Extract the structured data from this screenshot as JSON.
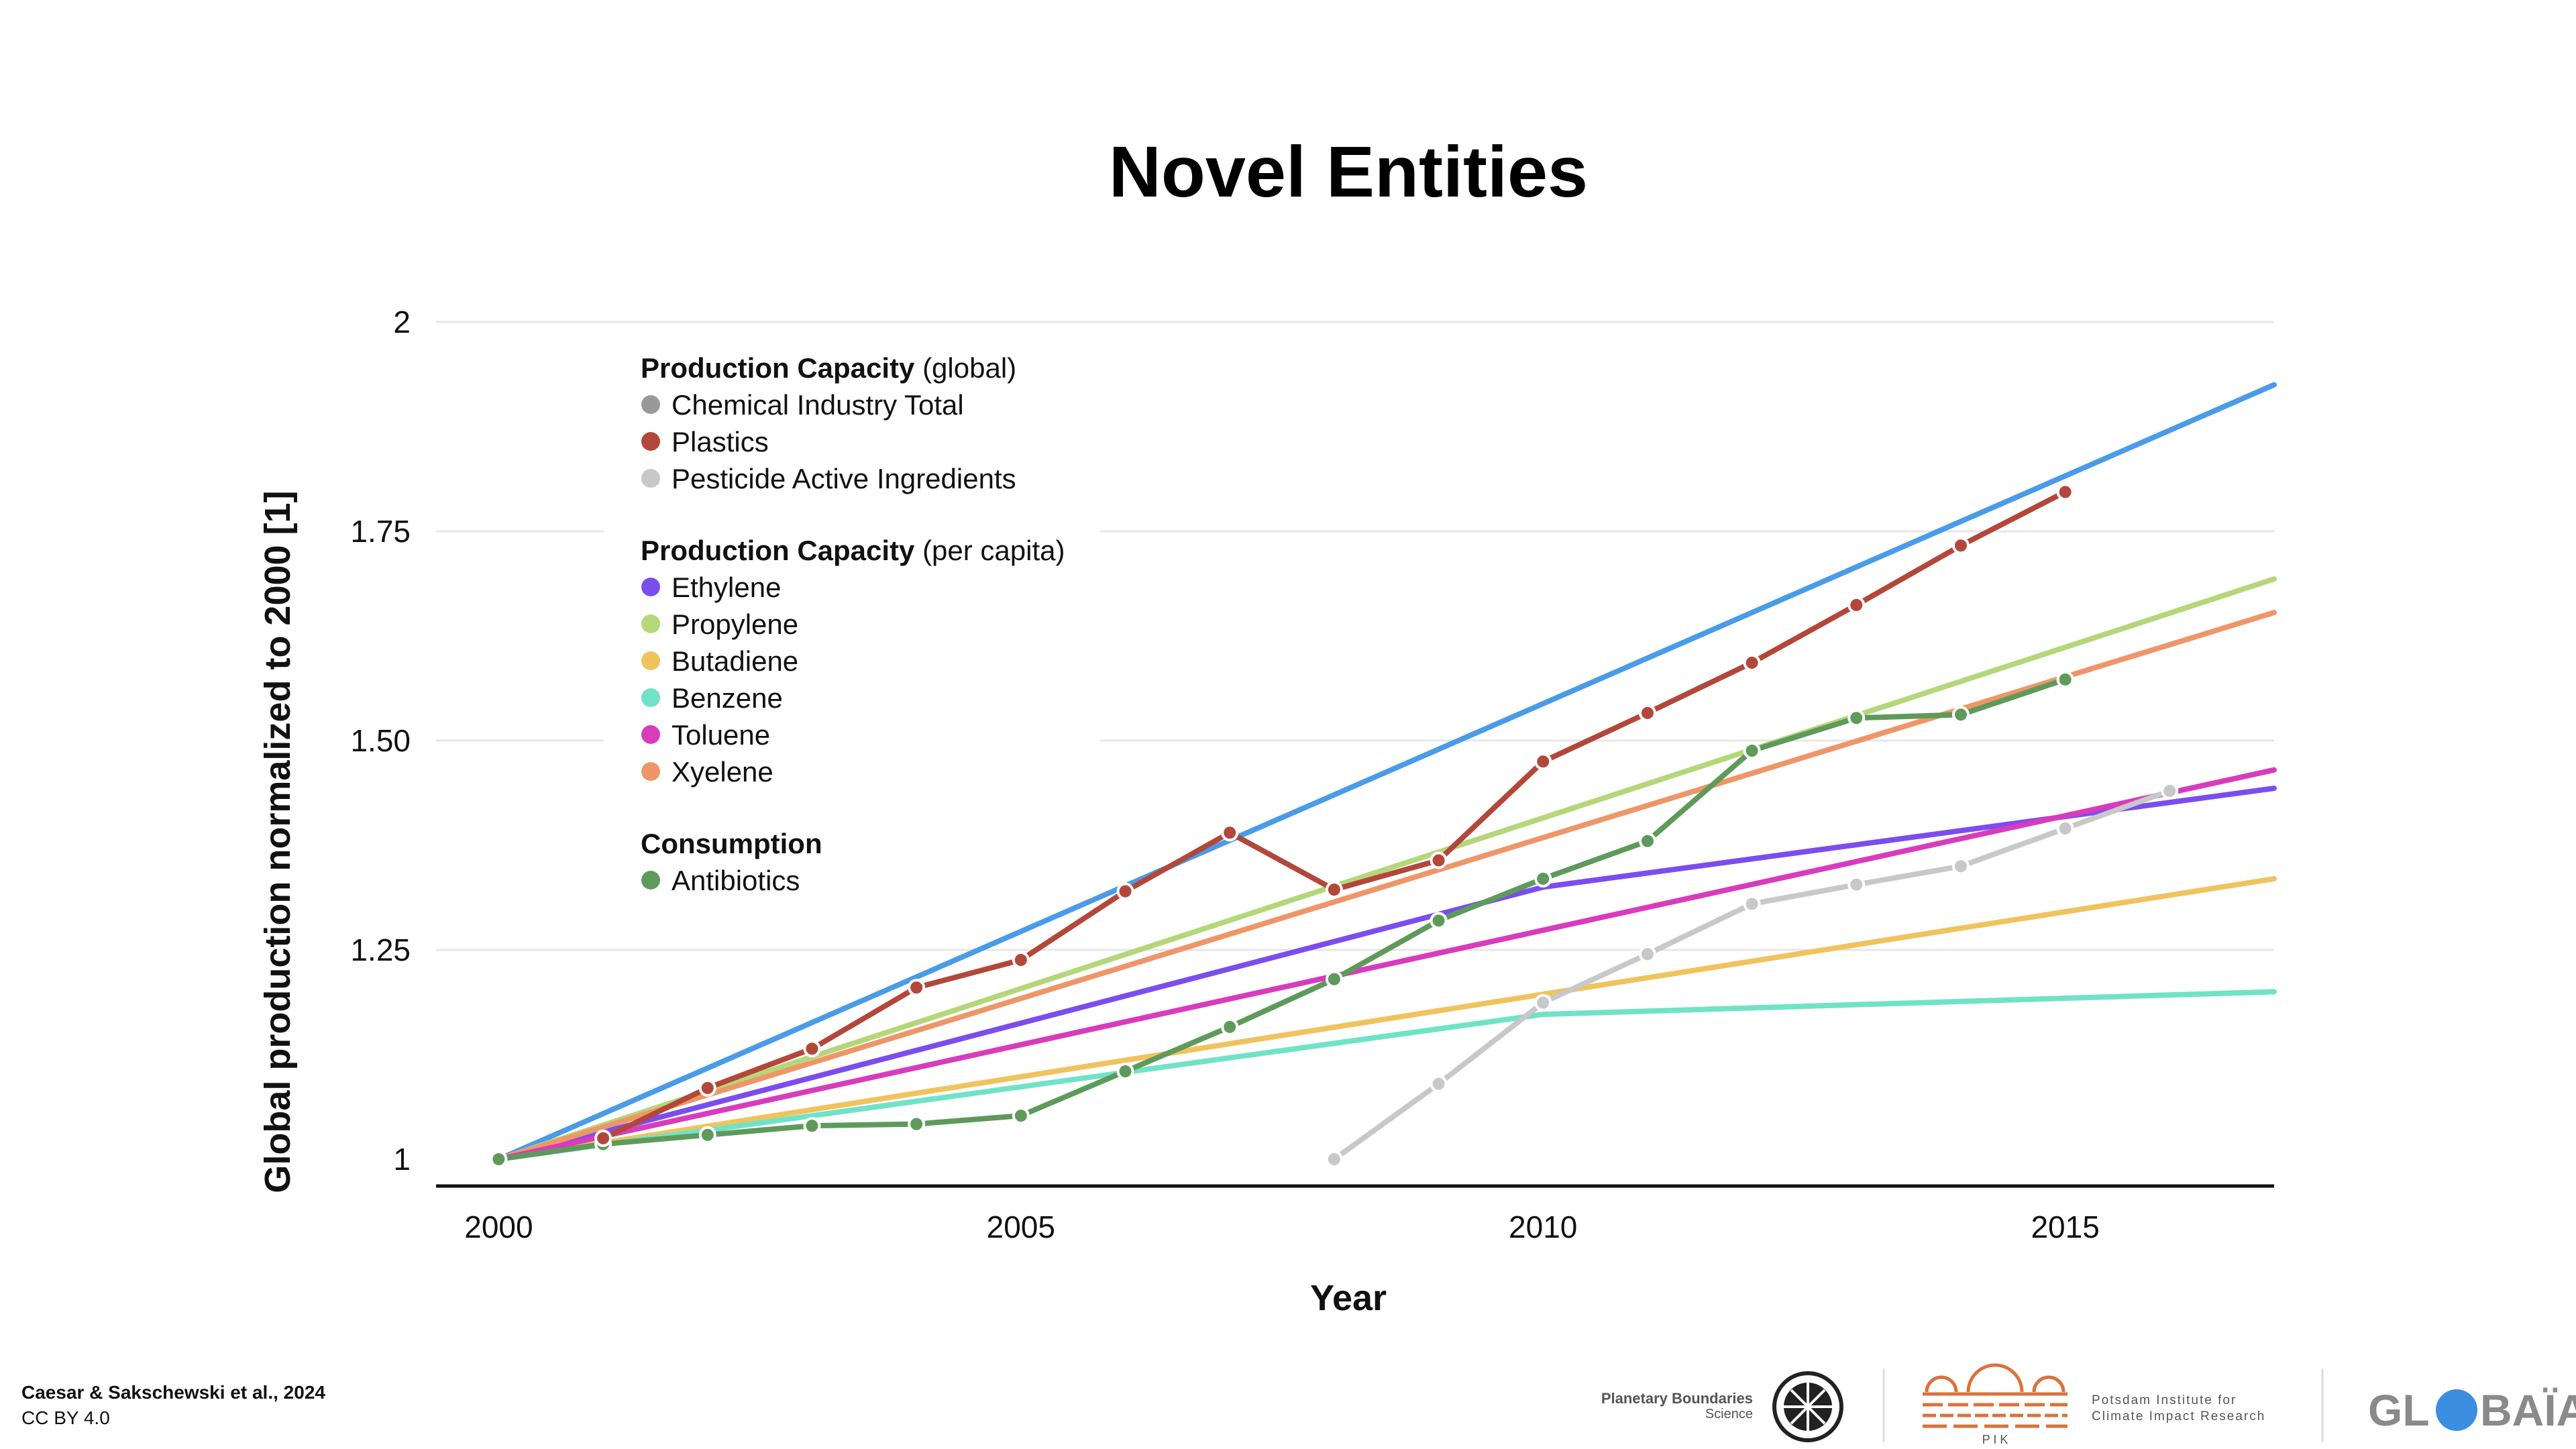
{
  "colors": {
    "chemical": "#5e9a5a",
    "plastics": "#b2473a",
    "pesticide": "#c8c8c8",
    "ethylene": "#7c4dee",
    "propylene": "#b4d77a",
    "butadiene": "#f0c35e",
    "benzene": "#70e3c6",
    "toluene": "#d93bbd",
    "xyelene": "#ee9668",
    "antibiotics": "#5e9a5a",
    "boundary": "#4a9be8"
  },
  "chart_data": {
    "type": "line",
    "title": "Novel Entities",
    "xlabel": "Year",
    "ylabel": "Global production normalized to 2000 [1]",
    "xlim": [
      1999.4,
      2017
    ],
    "ylim": [
      1,
      2
    ],
    "x_ticks": [
      2000,
      2005,
      2010,
      2015
    ],
    "x_tick_labels": [
      "2000",
      "2005",
      "2010",
      "2015"
    ],
    "y_ticks": [
      1,
      1.25,
      1.5,
      1.75,
      2
    ],
    "y_tick_labels": [
      "1",
      "1.25",
      "1.50",
      "1.75",
      "2"
    ],
    "grid": "horizontal",
    "legend_position": "top-left",
    "legend_groups": [
      {
        "title": "Production Capacity",
        "subtitle": "(global)",
        "items": [
          "Chemical Industry Total",
          "Plastics",
          "Pesticide Active Ingredients"
        ]
      },
      {
        "title": "Production Capacity",
        "subtitle": "(per capita)",
        "items": [
          "Ethylene",
          "Propylene",
          "Butadiene",
          "Benzene",
          "Toluene",
          "Xyelene"
        ]
      },
      {
        "title": "Consumption",
        "subtitle": "",
        "items": [
          "Antibiotics"
        ]
      }
    ],
    "series": [
      {
        "key": "boundary",
        "color_key": "boundary",
        "markers": false,
        "x": [
          2000,
          2017
        ],
        "y": [
          1,
          1.925
        ]
      },
      {
        "key": "ethylene",
        "name": "Ethylene",
        "color_key": "ethylene",
        "markers": false,
        "x": [
          2000,
          2010,
          2017
        ],
        "y": [
          1,
          1.325,
          1.443
        ]
      },
      {
        "key": "butadiene",
        "name": "Butadiene",
        "color_key": "butadiene",
        "markers": false,
        "x": [
          2000,
          2017
        ],
        "y": [
          1,
          1.335
        ]
      },
      {
        "key": "benzene",
        "name": "Benzene",
        "color_key": "benzene",
        "markers": false,
        "x": [
          2000,
          2010,
          2017
        ],
        "y": [
          1,
          1.173,
          1.2
        ]
      },
      {
        "key": "propylene",
        "name": "Propylene",
        "color_key": "propylene",
        "markers": false,
        "x": [
          2000,
          2017
        ],
        "y": [
          1,
          1.693
        ]
      },
      {
        "key": "xyelene",
        "name": "Xyelene",
        "color_key": "xyelene",
        "markers": false,
        "x": [
          2000,
          2017
        ],
        "y": [
          1,
          1.653
        ]
      },
      {
        "key": "toluene",
        "name": "Toluene",
        "color_key": "toluene",
        "markers": false,
        "x": [
          2000,
          2017
        ],
        "y": [
          1,
          1.465
        ]
      },
      {
        "key": "pesticide",
        "name": "Pesticide Active Ingredients",
        "color_key": "pesticide",
        "markers": true,
        "x": [
          2008,
          2009,
          2010,
          2011,
          2012,
          2013,
          2014,
          2015,
          2016
        ],
        "y": [
          1.0,
          1.09,
          1.187,
          1.245,
          1.305,
          1.328,
          1.35,
          1.395,
          1.44
        ]
      },
      {
        "key": "antibiotics",
        "name": "Antibiotics",
        "color_key": "antibiotics",
        "markers": true,
        "x": [
          2000,
          2001,
          2002,
          2003,
          2004,
          2005,
          2006,
          2007,
          2008,
          2009,
          2010,
          2011,
          2012,
          2013,
          2014,
          2015
        ],
        "y": [
          1.0,
          1.018,
          1.029,
          1.04,
          1.042,
          1.052,
          1.105,
          1.158,
          1.215,
          1.285,
          1.335,
          1.38,
          1.488,
          1.527,
          1.531,
          1.573
        ]
      },
      {
        "key": "plastics",
        "name": "Plastics",
        "color_key": "plastics",
        "markers": true,
        "x": [
          2001,
          2002,
          2003,
          2004,
          2005,
          2006,
          2007,
          2008,
          2009,
          2010,
          2011,
          2012,
          2013,
          2014,
          2015
        ],
        "y": [
          1.025,
          1.085,
          1.132,
          1.205,
          1.238,
          1.32,
          1.39,
          1.322,
          1.357,
          1.475,
          1.533,
          1.593,
          1.662,
          1.733,
          1.797
        ]
      }
    ]
  },
  "footer": {
    "citation": "Caesar & Sakschewski et al., 2024",
    "license": "CC BY 4.0",
    "pbs_line1": "Planetary Boundaries",
    "pbs_line2": "Science",
    "pik_letters": "P I K",
    "pik_line1": "Potsdam Institute for",
    "pik_line2": "Climate Impact Research",
    "globaia_left": "GL",
    "globaia_right": "BAÏA"
  }
}
